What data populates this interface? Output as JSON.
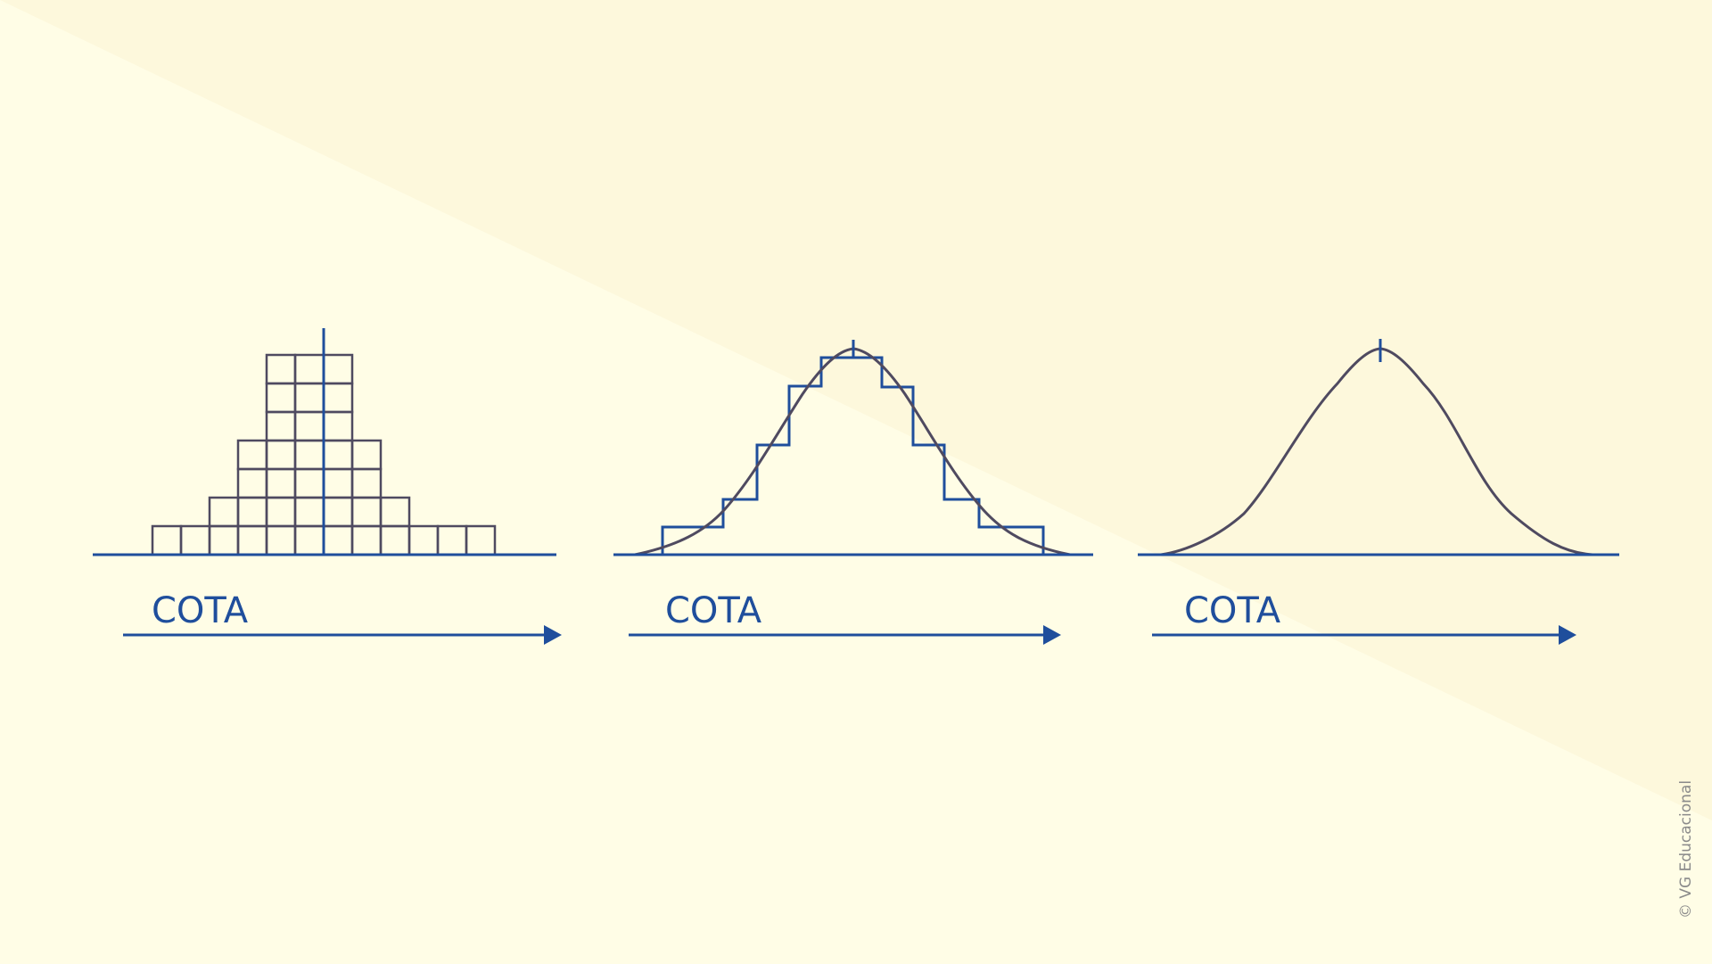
{
  "colors": {
    "background": "#fffde6",
    "background_band": "#fdf8dc",
    "blue": "#1f4e9c",
    "grey": "#4f4a60"
  },
  "panels": [
    {
      "axis_label": "COTA"
    },
    {
      "axis_label": "COTA"
    },
    {
      "axis_label": "COTA"
    }
  ],
  "histogram": {
    "column_heights": [
      1,
      1,
      2,
      4,
      7,
      7,
      7,
      4,
      2,
      1,
      1,
      1
    ]
  },
  "credit": "© VG Educacional"
}
